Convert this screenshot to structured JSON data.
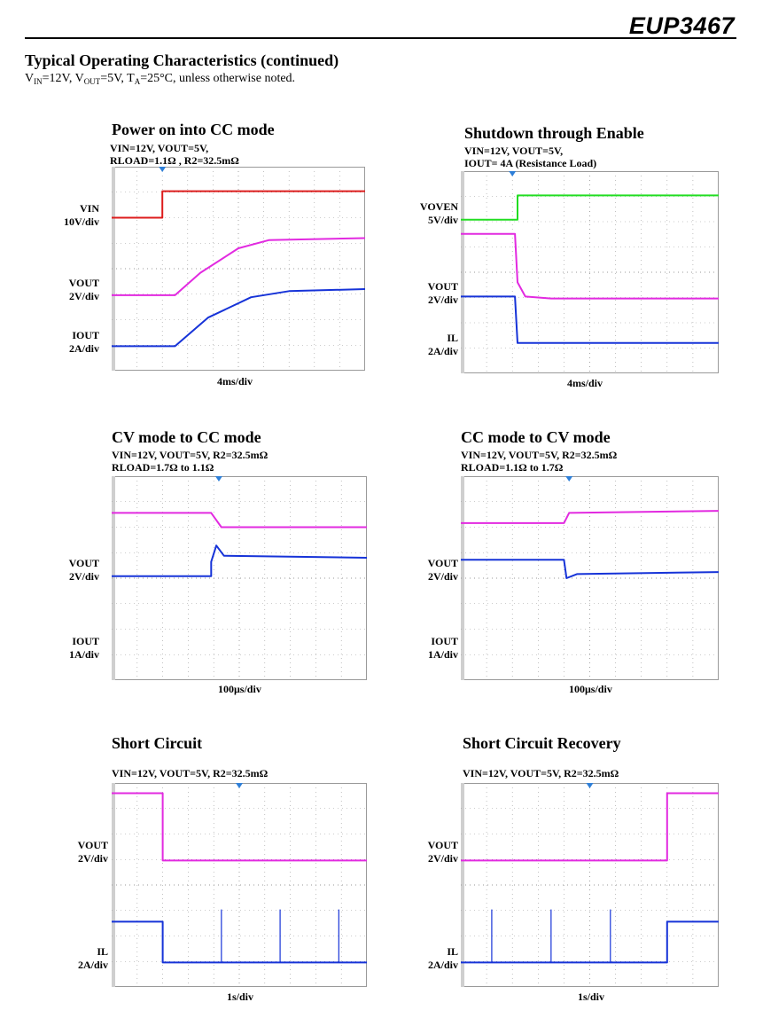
{
  "header": {
    "brand": "EUP3467"
  },
  "section": {
    "title": "Typical Operating Characteristics (continued)",
    "cond": {
      "vin": "V",
      "vin_sub": "IN",
      "vin_val": "=12V, V",
      "vout_sub": "OUT",
      "vout_val": "=5V, T",
      "ta_sub": "A",
      "ta_val": "=25°C, unless otherwise noted."
    }
  },
  "panels": [
    {
      "title": "Power on into CC mode",
      "cond1": "VIN=12V,  VOUT=5V,",
      "cond2": "RLOAD=1.1Ω , R2=32.5mΩ",
      "channels": [
        "VIN 10V/div",
        "VOUT 2V/div",
        "IOUT 2A/div"
      ],
      "ch_names": [
        "VIN",
        "VOUT",
        "IOUT"
      ],
      "ch_scales": [
        "10V/div",
        "2V/div",
        "2A/div"
      ],
      "xlabel": "4ms/div"
    },
    {
      "title": "Shutdown through Enable",
      "cond1": "VIN=12V,  VOUT=5V,",
      "cond2": "IOUT= 4A  (Resistance Load)",
      "ch_names": [
        "VOVEN",
        "VOUT",
        "IL"
      ],
      "ch_scales": [
        "5V/div",
        "2V/div",
        "2A/div"
      ],
      "xlabel": "4ms/div"
    },
    {
      "title": "CV mode to CC mode",
      "cond1": "VIN=12V,  VOUT=5V,  R2=32.5mΩ",
      "cond2": "RLOAD=1.7Ω to 1.1Ω",
      "ch_names": [
        "VOUT",
        "IOUT"
      ],
      "ch_scales": [
        "2V/div",
        "1A/div"
      ],
      "xlabel": "100μs/div"
    },
    {
      "title": "CC mode to CV mode",
      "cond1": "VIN=12V,  VOUT=5V,  R2=32.5mΩ",
      "cond2": "RLOAD=1.1Ω to 1.7Ω",
      "ch_names": [
        "VOUT",
        "IOUT"
      ],
      "ch_scales": [
        "2V/div",
        "1A/div"
      ],
      "xlabel": "100μs/div"
    },
    {
      "title": "Short Circuit",
      "cond1": "VIN=12V,  VOUT=5V,  R2=32.5mΩ",
      "cond2": "",
      "ch_names": [
        "VOUT",
        "IL"
      ],
      "ch_scales": [
        "2V/div",
        "2A/div"
      ],
      "xlabel": "1s/div"
    },
    {
      "title": "Short Circuit Recovery",
      "cond1": "VIN=12V,  VOUT=5V,  R2=32.5mΩ",
      "cond2": "",
      "ch_names": [
        "VOUT",
        "IL"
      ],
      "ch_scales": [
        "2V/div",
        "2A/div"
      ],
      "xlabel": "1s/div"
    }
  ],
  "colors": {
    "ch_red": "#dd1c1c",
    "ch_green": "#22dd22",
    "ch_magenta": "#e22ae0",
    "ch_blue": "#1633d8",
    "grid": "#9a9a9a"
  }
}
